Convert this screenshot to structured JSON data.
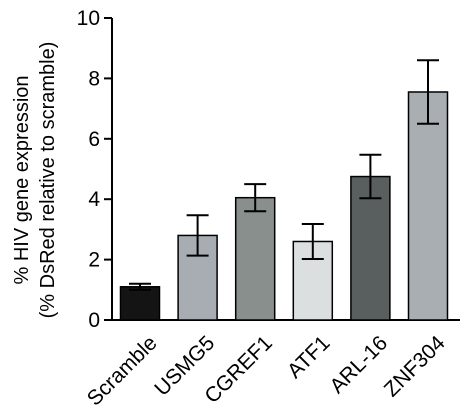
{
  "chart_data": {
    "type": "bar",
    "title": "",
    "xlabel": "",
    "ylabel_line1": "% HIV gene expression",
    "ylabel_line2": "(% DsRed relative to scramble)",
    "ylim": [
      0,
      10
    ],
    "yticks": [
      "0",
      "2",
      "4",
      "6",
      "8",
      "10"
    ],
    "categories": [
      "Scramble",
      "USMG5",
      "CGREF1",
      "ATF1",
      "ARL-16",
      "ZNF304"
    ],
    "values": [
      1.1,
      2.8,
      4.05,
      2.6,
      4.75,
      7.55
    ],
    "errors": [
      0.1,
      0.67,
      0.45,
      0.58,
      0.72,
      1.05
    ],
    "colors": [
      "#141414",
      "#a7adb3",
      "#898f8d",
      "#dcdfdf",
      "#595e5e",
      "#a9aeb2"
    ],
    "grid": false,
    "legend": "none"
  }
}
